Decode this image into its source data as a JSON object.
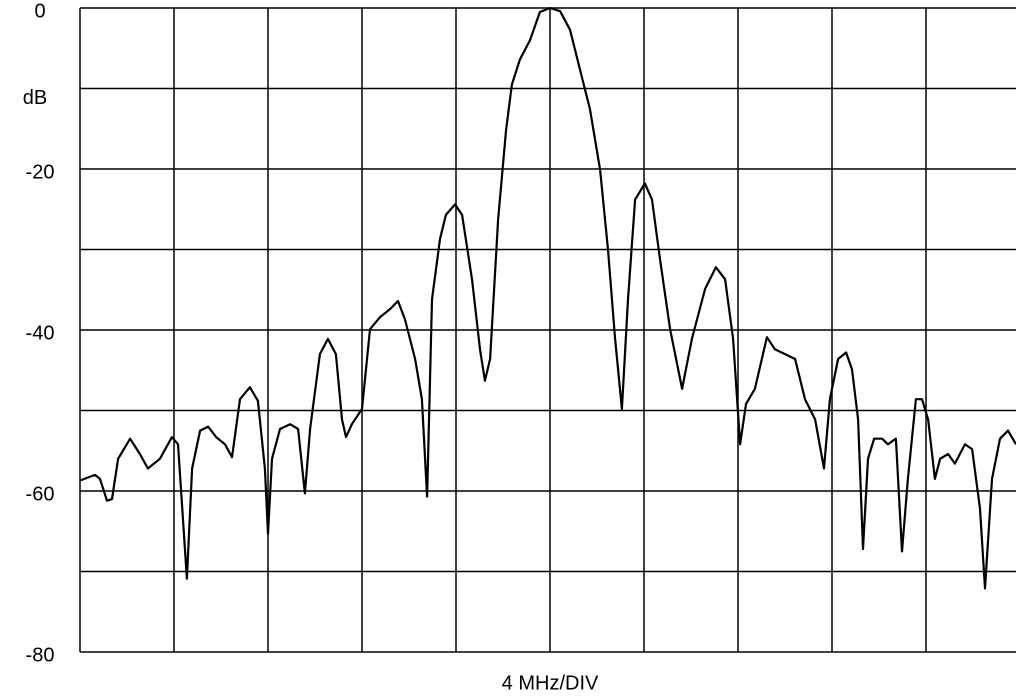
{
  "chart_data": {
    "type": "line",
    "xlabel": "4 MHz/DIV",
    "ylabel": "dB",
    "xlim": [
      -20,
      20
    ],
    "xticks": [
      -20,
      -16,
      -12,
      -8,
      -4,
      0,
      4,
      8,
      12,
      16,
      20
    ],
    "ylim": [
      -80,
      0
    ],
    "yticks": [
      0,
      -20,
      -40,
      -60,
      -80
    ],
    "minor_yticks": [
      -10,
      -30,
      -50,
      -70
    ],
    "grid": true,
    "series": [
      {
        "color": "#000000",
        "x": [
          -20.0,
          -19.36,
          -19.15,
          -18.85,
          -18.64,
          -18.38,
          -17.87,
          -17.45,
          -17.11,
          -16.6,
          -16.09,
          -15.83,
          -15.45,
          -15.23,
          -14.89,
          -14.55,
          -14.21,
          -13.83,
          -13.53,
          -13.19,
          -12.77,
          -12.43,
          -12.13,
          -12.0,
          -11.83,
          -11.49,
          -11.06,
          -10.72,
          -10.43,
          -10.21,
          -9.79,
          -9.45,
          -9.11,
          -8.85,
          -8.68,
          -8.43,
          -8.0,
          -7.66,
          -7.23,
          -6.81,
          -6.47,
          -6.17,
          -5.74,
          -5.45,
          -5.23,
          -5.02,
          -4.68,
          -4.43,
          -4.04,
          -3.74,
          -3.32,
          -2.98,
          -2.77,
          -2.55,
          -2.21,
          -1.87,
          -1.62,
          -1.28,
          -0.85,
          -0.43,
          0,
          0.43,
          0.85,
          1.28,
          1.7,
          2.13,
          2.47,
          2.77,
          3.06,
          3.32,
          3.62,
          4.04,
          4.34,
          4.68,
          5.11,
          5.62,
          6.04,
          6.6,
          7.06,
          7.45,
          7.79,
          8.09,
          8.34,
          8.72,
          9.23,
          9.57,
          10.0,
          10.43,
          10.85,
          11.28,
          11.66,
          11.91,
          12.26,
          12.6,
          12.85,
          13.11,
          13.32,
          13.53,
          13.79,
          14.13,
          14.38,
          14.72,
          14.98,
          15.23,
          15.57,
          15.83,
          16.09,
          16.38,
          16.6,
          16.94,
          17.23,
          17.66,
          17.96,
          18.3,
          18.51,
          18.81,
          19.15,
          19.49,
          19.83
        ],
        "values": [
          -58.7,
          -58.0,
          -58.5,
          -61.2,
          -61.0,
          -56.0,
          -53.5,
          -55.4,
          -57.2,
          -56.0,
          -53.3,
          -54.2,
          -70.9,
          -57.2,
          -52.5,
          -52.0,
          -53.3,
          -54.2,
          -55.8,
          -48.6,
          -47.1,
          -48.8,
          -57.2,
          -65.3,
          -56.0,
          -52.3,
          -51.7,
          -52.3,
          -60.3,
          -52.3,
          -43.0,
          -41.1,
          -43.0,
          -51.1,
          -53.3,
          -51.7,
          -49.8,
          -39.9,
          -38.4,
          -37.4,
          -36.4,
          -38.7,
          -43.6,
          -48.6,
          -60.7,
          -36.2,
          -28.7,
          -25.7,
          -24.4,
          -25.7,
          -33.7,
          -42.4,
          -46.3,
          -43.6,
          -26.3,
          -15.1,
          -9.5,
          -6.4,
          -4.0,
          -0.5,
          0,
          -0.4,
          -2.7,
          -7.7,
          -12.6,
          -20.1,
          -30.0,
          -41.1,
          -49.8,
          -36.2,
          -23.8,
          -21.8,
          -23.8,
          -31.2,
          -39.9,
          -47.3,
          -41.1,
          -34.9,
          -32.2,
          -33.7,
          -41.1,
          -54.2,
          -49.2,
          -47.3,
          -40.9,
          -42.4,
          -43.0,
          -43.6,
          -48.6,
          -51.1,
          -57.2,
          -48.6,
          -43.6,
          -42.8,
          -44.9,
          -51.1,
          -67.2,
          -56.0,
          -53.5,
          -53.5,
          -54.2,
          -53.5,
          -67.5,
          -58.5,
          -48.6,
          -48.6,
          -51.1,
          -58.5,
          -56.0,
          -55.4,
          -56.6,
          -54.2,
          -54.8,
          -62.2,
          -72.1,
          -58.5,
          -53.5,
          -52.5,
          -54.2
        ]
      }
    ]
  }
}
